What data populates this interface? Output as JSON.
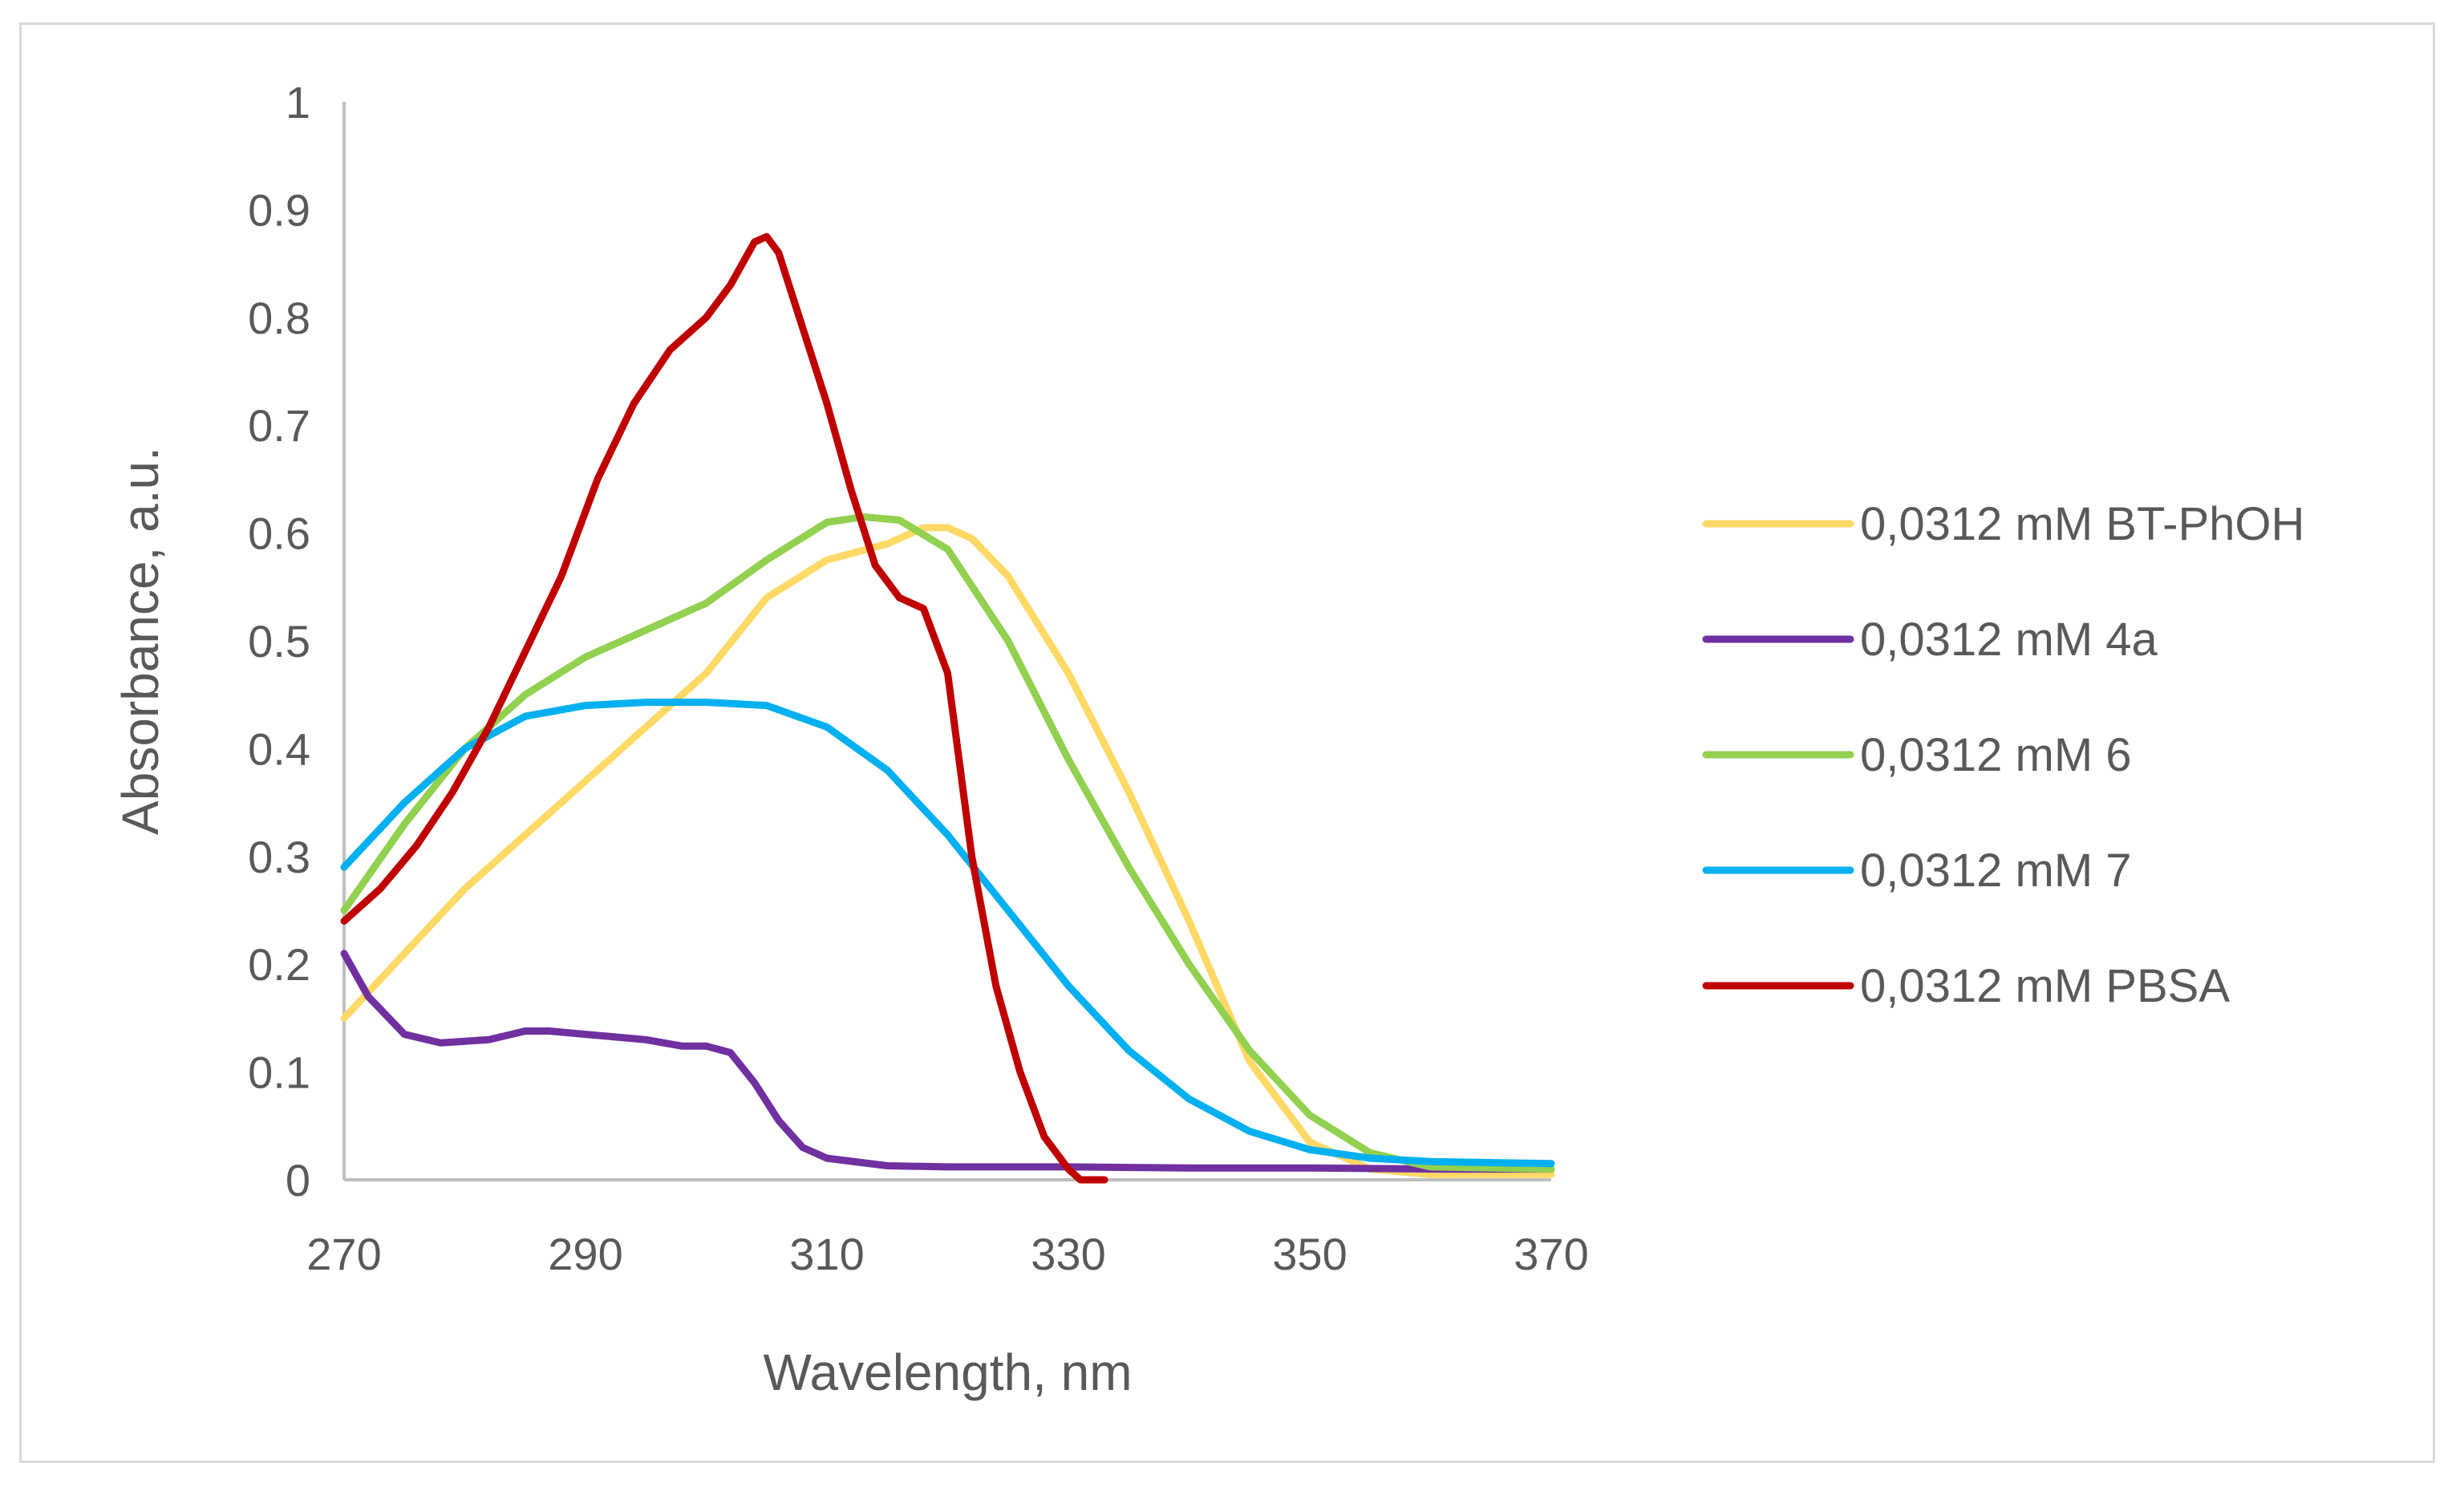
{
  "chart_data": {
    "type": "line",
    "title": "",
    "xlabel": "Wavelength, nm",
    "ylabel": "Absorbance, a.u.",
    "xlim": [
      270,
      370
    ],
    "ylim": [
      0,
      1
    ],
    "xticks": [
      270,
      290,
      310,
      330,
      350,
      370
    ],
    "xtick_labels": [
      "270",
      "290",
      "310",
      "330",
      "350",
      "370"
    ],
    "yticks": [
      0,
      0.1,
      0.2,
      0.3,
      0.4,
      0.5,
      0.6,
      0.7,
      0.8,
      0.9,
      1
    ],
    "ytick_labels": [
      "0",
      "0.1",
      "0.2",
      "0.3",
      "0.4",
      "0.5",
      "0.6",
      "0.7",
      "0.8",
      "0.9",
      "1"
    ],
    "grid": false,
    "legend_position": "right",
    "series": [
      {
        "name": "0,0312 mM BT-PhOH",
        "color": "#ffd966",
        "x": [
          270,
          275,
          280,
          285,
          290,
          295,
          300,
          305,
          310,
          315,
          318,
          320,
          322,
          325,
          330,
          335,
          340,
          345,
          350,
          355,
          360,
          365,
          370
        ],
        "y": [
          0.15,
          0.21,
          0.27,
          0.32,
          0.37,
          0.42,
          0.47,
          0.54,
          0.575,
          0.59,
          0.605,
          0.605,
          0.595,
          0.56,
          0.47,
          0.36,
          0.24,
          0.11,
          0.035,
          0.01,
          0.005,
          0.005,
          0.005
        ]
      },
      {
        "name": "0,0312 mM 4a",
        "color": "#7030a0",
        "x": [
          270,
          272,
          275,
          278,
          282,
          285,
          287,
          290,
          295,
          298,
          300,
          302,
          304,
          306,
          308,
          310,
          315,
          320,
          330,
          340,
          350,
          360,
          370
        ],
        "y": [
          0.21,
          0.17,
          0.135,
          0.127,
          0.13,
          0.138,
          0.138,
          0.135,
          0.13,
          0.124,
          0.124,
          0.118,
          0.09,
          0.055,
          0.03,
          0.02,
          0.013,
          0.012,
          0.012,
          0.011,
          0.011,
          0.01,
          0.01
        ]
      },
      {
        "name": "0,0312 mM 6",
        "color": "#92d050",
        "x": [
          270,
          275,
          280,
          285,
          290,
          295,
          300,
          305,
          310,
          313,
          316,
          320,
          325,
          330,
          335,
          340,
          345,
          350,
          355,
          360,
          370
        ],
        "y": [
          0.25,
          0.33,
          0.4,
          0.45,
          0.485,
          0.51,
          0.535,
          0.575,
          0.61,
          0.615,
          0.612,
          0.585,
          0.5,
          0.39,
          0.29,
          0.2,
          0.12,
          0.06,
          0.025,
          0.012,
          0.01
        ]
      },
      {
        "name": "0,0312 mM 7",
        "color": "#00b0f0",
        "x": [
          270,
          275,
          280,
          285,
          290,
          295,
          300,
          305,
          310,
          315,
          320,
          325,
          330,
          335,
          340,
          345,
          350,
          355,
          360,
          370
        ],
        "y": [
          0.29,
          0.35,
          0.4,
          0.43,
          0.44,
          0.443,
          0.443,
          0.44,
          0.42,
          0.38,
          0.32,
          0.25,
          0.18,
          0.12,
          0.075,
          0.045,
          0.028,
          0.02,
          0.017,
          0.015
        ]
      },
      {
        "name": "0,0312 mM PBSA",
        "color": "#c00000",
        "x": [
          270,
          273,
          276,
          279,
          282,
          285,
          288,
          291,
          294,
          297,
          300,
          302,
          304,
          305,
          306,
          308,
          310,
          312,
          314,
          316,
          318,
          320,
          322,
          324,
          326,
          328,
          330,
          331,
          332,
          333
        ],
        "y": [
          0.24,
          0.27,
          0.31,
          0.36,
          0.42,
          0.49,
          0.56,
          0.65,
          0.72,
          0.77,
          0.8,
          0.83,
          0.87,
          0.875,
          0.86,
          0.79,
          0.72,
          0.64,
          0.57,
          0.54,
          0.53,
          0.47,
          0.3,
          0.18,
          0.1,
          0.04,
          0.01,
          0.0,
          0.0,
          0.0
        ]
      }
    ]
  }
}
